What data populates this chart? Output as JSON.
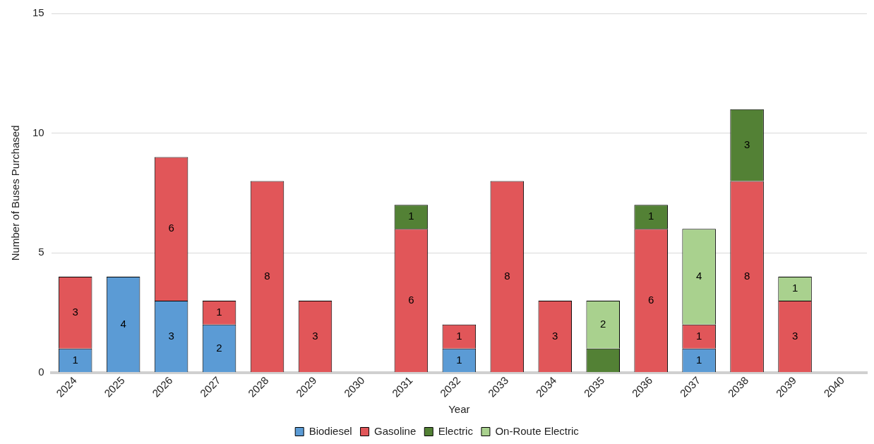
{
  "chart_data": {
    "type": "bar",
    "stacked": true,
    "xlabel": "Year",
    "ylabel": "Number of Buses Purchased",
    "categories": [
      "2024",
      "2025",
      "2026",
      "2027",
      "2028",
      "2029",
      "2030",
      "2031",
      "2032",
      "2033",
      "2034",
      "2035",
      "2036",
      "2037",
      "2038",
      "2039",
      "2040"
    ],
    "ylim": [
      0,
      15
    ],
    "yticks": [
      0,
      5,
      10,
      15
    ],
    "grid": "y",
    "legend": "bottom",
    "series": [
      {
        "name": "Biodiesel",
        "color": "#5b9bd5",
        "values": [
          1,
          4,
          3,
          2,
          null,
          null,
          null,
          null,
          1,
          null,
          null,
          null,
          null,
          1,
          null,
          null,
          null
        ],
        "value_labels": [
          "1",
          "4",
          "3",
          "2",
          null,
          null,
          null,
          null,
          "1",
          null,
          null,
          null,
          null,
          "1",
          null,
          null,
          null
        ]
      },
      {
        "name": "Gasoline",
        "color": "#e15659",
        "values": [
          3,
          null,
          6,
          1,
          8,
          3,
          null,
          6,
          1,
          8,
          3,
          null,
          6,
          1,
          8,
          3,
          null
        ],
        "value_labels": [
          "3",
          null,
          "6",
          "1",
          "8",
          "3",
          null,
          "6",
          "1",
          "8",
          "3",
          null,
          "6",
          "1",
          "8",
          "3",
          null
        ]
      },
      {
        "name": "Electric",
        "color": "#538135",
        "values": [
          null,
          null,
          null,
          null,
          null,
          null,
          null,
          1,
          null,
          null,
          null,
          1,
          1,
          null,
          3,
          null,
          null
        ],
        "value_labels": [
          null,
          null,
          null,
          null,
          null,
          null,
          null,
          "1",
          null,
          null,
          null,
          null,
          "1",
          null,
          "3",
          null,
          null
        ]
      },
      {
        "name": "On-Route Electric",
        "color": "#a9d18e",
        "values": [
          null,
          null,
          null,
          null,
          null,
          null,
          null,
          null,
          null,
          null,
          null,
          2,
          null,
          4,
          null,
          1,
          null
        ],
        "value_labels": [
          null,
          null,
          null,
          null,
          null,
          null,
          null,
          null,
          null,
          null,
          null,
          "2",
          null,
          "4",
          null,
          "1",
          null
        ]
      }
    ]
  }
}
